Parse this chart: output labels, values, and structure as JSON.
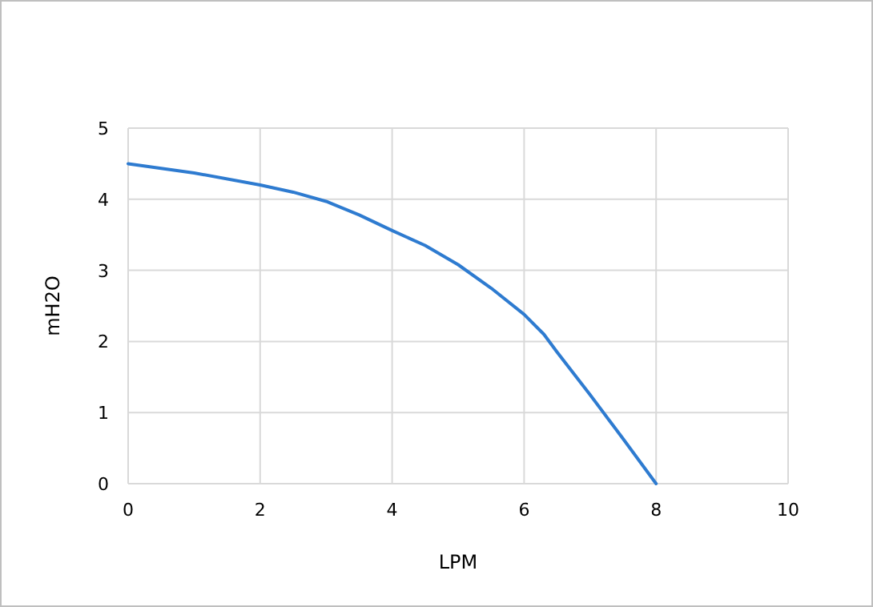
{
  "chart_data": {
    "type": "line",
    "xlabel": "LPM",
    "ylabel": "mH2O",
    "xlim": [
      0,
      10
    ],
    "ylim": [
      0,
      5
    ],
    "xticks": [
      0,
      2,
      4,
      6,
      8,
      10
    ],
    "yticks": [
      0,
      1,
      2,
      3,
      4,
      5
    ],
    "grid": true,
    "marker": "none",
    "line_style": "solid",
    "series": [
      {
        "color": "#2e7bd0",
        "x": [
          0,
          1,
          2,
          2.5,
          3,
          3.5,
          4,
          4.5,
          5,
          5.5,
          6,
          6.3,
          6.5,
          7,
          7.5,
          8
        ],
        "values": [
          4.5,
          4.37,
          4.2,
          4.1,
          3.97,
          3.78,
          3.56,
          3.35,
          3.08,
          2.75,
          2.38,
          2.1,
          1.85,
          1.25,
          0.63,
          0
        ]
      }
    ]
  }
}
